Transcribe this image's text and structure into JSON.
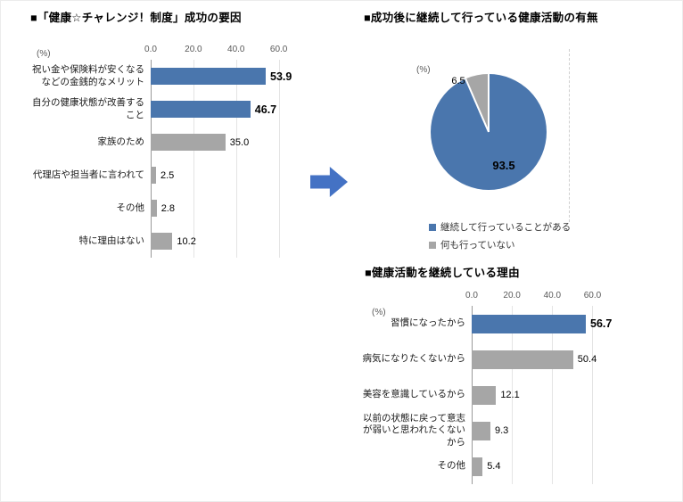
{
  "page": {
    "background": "#ffffff"
  },
  "palette": {
    "blue": "#4a76ad",
    "gray": "#a6a6a6",
    "arrow_blue": "#4472c4"
  },
  "chart_data": [
    {
      "type": "bar",
      "orientation": "horizontal",
      "title": "■「健康☆チャレンジ！制度」成功の要因",
      "unit_label": "(%)",
      "xlim": [
        0,
        66
      ],
      "axis_ticks": [
        0,
        20,
        40,
        60
      ],
      "grid": true,
      "categories": [
        "祝い金や保険料が安くなるなどの金銭的なメリット",
        "自分の健康状態が改善すること",
        "家族のため",
        "代理店や担当者に言われて",
        "その他",
        "特に理由はない"
      ],
      "values": [
        53.9,
        46.7,
        35.0,
        2.5,
        2.8,
        10.2
      ],
      "bar_colors": [
        "blue",
        "blue",
        "gray",
        "gray",
        "gray",
        "gray"
      ]
    },
    {
      "type": "pie",
      "title": "■成功後に継続して行っている健康活動の有無",
      "unit_label": "(%)",
      "labels": [
        "継続して行っていることがある",
        "何も行っていない"
      ],
      "values": [
        93.5,
        6.5
      ],
      "slice_colors": [
        "blue",
        "gray"
      ],
      "start_angle": 0,
      "legend_position": "bottom-left"
    },
    {
      "type": "bar",
      "orientation": "horizontal",
      "title": "■健康活動を継続している理由",
      "unit_label": "(%)",
      "xlim": [
        0,
        66
      ],
      "axis_ticks": [
        0,
        20,
        40,
        60
      ],
      "grid": true,
      "categories": [
        "習慣になったから",
        "病気になりたくないから",
        "美容を意識しているから",
        "以前の状態に戻って意志が弱いと思われたくないから",
        "その他"
      ],
      "values": [
        56.7,
        50.4,
        12.1,
        9.3,
        5.4
      ],
      "bar_colors": [
        "blue",
        "gray",
        "gray",
        "gray",
        "gray"
      ]
    }
  ]
}
